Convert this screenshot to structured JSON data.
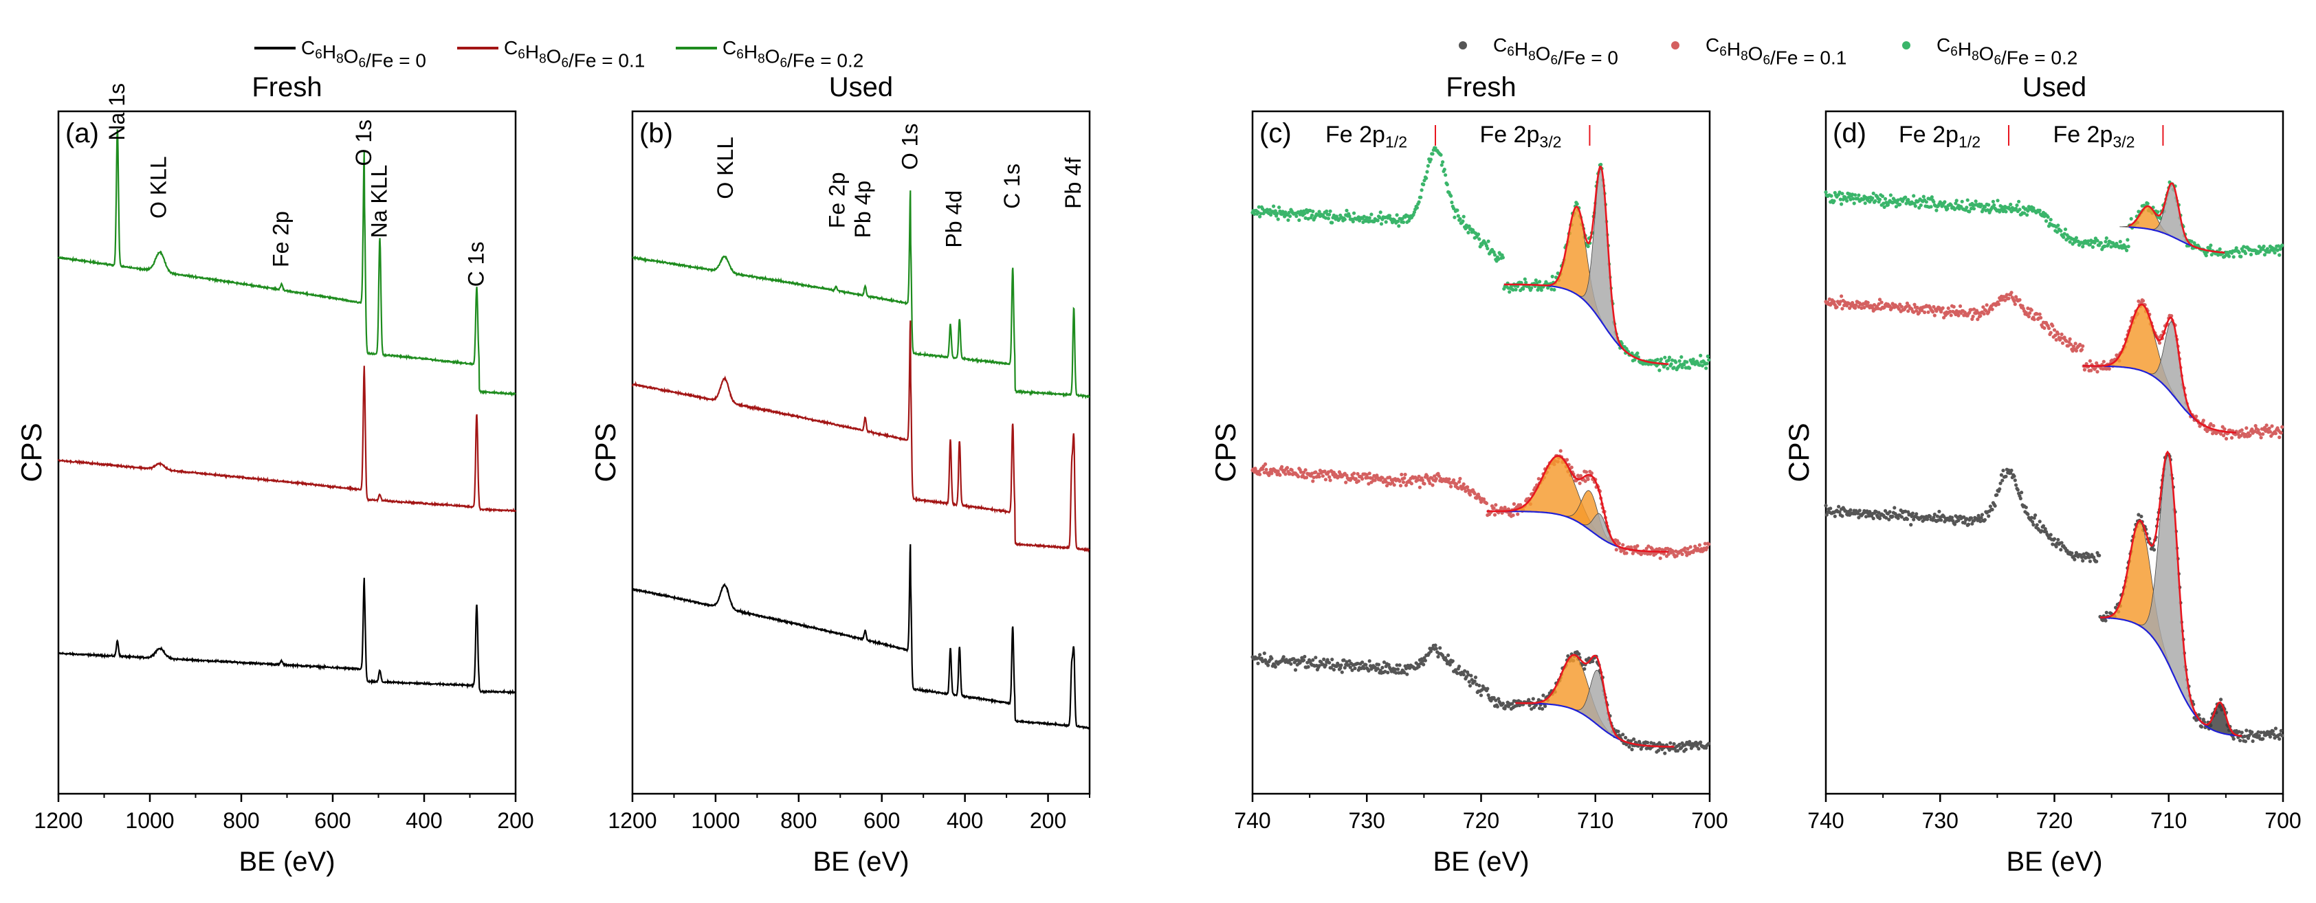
{
  "colors": {
    "black": "#000000",
    "red": "#a31515",
    "green": "#1e8c1e",
    "dot_black": "#555555",
    "dot_red": "#d46060",
    "dot_green": "#3ab56a",
    "envelope": "#e8161f",
    "background": "#1f1fd6",
    "fill_orange": "#f59a2c",
    "fill_gray": "#a8a8a8",
    "fill_dark": "#3c3c3c"
  },
  "legend_left": [
    {
      "name": "C6H8O6/Fe = 0",
      "base": "C",
      "parts": [
        {
          "t": "C"
        },
        {
          "s": "6"
        },
        {
          "t": "H"
        },
        {
          "s": "8"
        },
        {
          "t": "O"
        },
        {
          "s": "6"
        },
        {
          "t": "/Fe = 0"
        }
      ],
      "color_key": "black"
    },
    {
      "name": "C6H8O6/Fe = 0.1",
      "parts": [
        {
          "t": "C"
        },
        {
          "s": "6"
        },
        {
          "t": "H"
        },
        {
          "s": "8"
        },
        {
          "t": "O"
        },
        {
          "s": "6"
        },
        {
          "t": "/Fe = 0.1"
        }
      ],
      "color_key": "red"
    },
    {
      "name": "C6H8O6/Fe = 0.2",
      "parts": [
        {
          "t": "C"
        },
        {
          "s": "6"
        },
        {
          "t": "H"
        },
        {
          "s": "8"
        },
        {
          "t": "O"
        },
        {
          "s": "6"
        },
        {
          "t": "/Fe = 0.2"
        }
      ],
      "color_key": "green"
    }
  ],
  "legend_right": [
    {
      "name": "C6H8O6/Fe = 0",
      "parts": [
        {
          "t": "C"
        },
        {
          "s": "6"
        },
        {
          "t": "H"
        },
        {
          "s": "8"
        },
        {
          "t": "O"
        },
        {
          "s": "6"
        },
        {
          "t": "/Fe = 0"
        }
      ],
      "color_key": "dot_black"
    },
    {
      "name": "C6H8O6/Fe = 0.1",
      "parts": [
        {
          "t": "C"
        },
        {
          "s": "6"
        },
        {
          "t": "H"
        },
        {
          "s": "8"
        },
        {
          "t": "O"
        },
        {
          "s": "6"
        },
        {
          "t": "/Fe = 0.1"
        }
      ],
      "color_key": "dot_red"
    },
    {
      "name": "C6H8O6/Fe = 0.2",
      "parts": [
        {
          "t": "C"
        },
        {
          "s": "6"
        },
        {
          "t": "H"
        },
        {
          "s": "8"
        },
        {
          "t": "O"
        },
        {
          "s": "6"
        },
        {
          "t": "/Fe = 0.2"
        }
      ],
      "color_key": "dot_green"
    }
  ],
  "chart_data": [
    {
      "id": "a",
      "type": "line",
      "label": "(a)",
      "title": "Fresh",
      "xlabel": "BE (eV)",
      "ylabel": "CPS",
      "xlim": [
        1200,
        200
      ],
      "xticks": [
        1200,
        1000,
        800,
        600,
        400,
        200
      ],
      "series": [
        {
          "name": "C6H8O6/Fe = 0",
          "color_key": "black",
          "baseline": 0.0,
          "level_high": 0.22,
          "level_low": 0.08,
          "peaks": [
            [
              1071,
              0.08
            ],
            [
              978,
              0.05
            ],
            [
              712,
              0.02
            ],
            [
              531,
              0.47
            ],
            [
              497,
              0.06
            ],
            [
              285,
              0.42
            ]
          ]
        },
        {
          "name": "C6H8O6/Fe = 0.1",
          "color_key": "red",
          "baseline": 0.95,
          "level_high": 0.26,
          "level_low": 0.0,
          "peaks": [
            [
              978,
              0.03
            ],
            [
              531,
              0.64
            ],
            [
              497,
              0.03
            ],
            [
              285,
              0.48
            ]
          ]
        },
        {
          "name": "C6H8O6/Fe = 0.2",
          "color_key": "green",
          "baseline": 1.45,
          "level_high": 0.8,
          "level_low": 0.4,
          "peaks": [
            [
              1071,
              0.7
            ],
            [
              978,
              0.1
            ],
            [
              712,
              0.03
            ],
            [
              531,
              0.78
            ],
            [
              497,
              0.6
            ],
            [
              285,
              0.4
            ]
          ]
        }
      ],
      "annotations": [
        {
          "text": "Na 1s",
          "x": 1071,
          "y": 2.85
        },
        {
          "text": "O KLL",
          "x": 980,
          "y": 2.45
        },
        {
          "text": "Fe 2p",
          "x": 712,
          "y": 2.2
        },
        {
          "text": "O 1s",
          "x": 531,
          "y": 2.72
        },
        {
          "text": "Na KLL",
          "x": 497,
          "y": 2.35
        },
        {
          "text": "C 1s",
          "x": 285,
          "y": 2.1
        }
      ],
      "ylim": [
        -0.5,
        3.0
      ]
    },
    {
      "id": "b",
      "type": "line",
      "label": "(b)",
      "title": "Used",
      "xlabel": "BE (eV)",
      "ylabel": "CPS",
      "xlim": [
        1200,
        100
      ],
      "xticks": [
        1200,
        1000,
        800,
        600,
        400,
        200
      ],
      "series": [
        {
          "name": "C6H8O6/Fe = 0",
          "color_key": "black",
          "baseline": 0.0,
          "level_high": 0.75,
          "level_low": 0.15,
          "peaks": [
            [
              978,
              0.12
            ],
            [
              640,
              0.05
            ],
            [
              531,
              0.55
            ],
            [
              435,
              0.24
            ],
            [
              413,
              0.25
            ],
            [
              285,
              0.4
            ],
            [
              138,
              0.38
            ],
            [
              143,
              0.3
            ]
          ]
        },
        {
          "name": "C6H8O6/Fe = 0.1",
          "color_key": "red",
          "baseline": 0.85,
          "level_high": 0.95,
          "level_low": 0.4,
          "peaks": [
            [
              978,
              0.12
            ],
            [
              640,
              0.07
            ],
            [
              531,
              0.62
            ],
            [
              435,
              0.33
            ],
            [
              413,
              0.33
            ],
            [
              285,
              0.46
            ],
            [
              138,
              0.55
            ],
            [
              143,
              0.4
            ]
          ]
        },
        {
          "name": "C6H8O6/Fe = 0.2",
          "color_key": "green",
          "baseline": 1.65,
          "level_high": 0.8,
          "level_low": 0.35,
          "peaks": [
            [
              978,
              0.08
            ],
            [
              710,
              0.02
            ],
            [
              640,
              0.05
            ],
            [
              531,
              0.58
            ],
            [
              435,
              0.17
            ],
            [
              413,
              0.2
            ],
            [
              285,
              0.5
            ],
            [
              138,
              0.45
            ]
          ]
        }
      ],
      "annotations": [
        {
          "text": "O KLL",
          "x": 975,
          "y": 2.75
        },
        {
          "text": "Fe 2p",
          "x": 706,
          "y": 2.6
        },
        {
          "text": "Pb 4p",
          "x": 644,
          "y": 2.55
        },
        {
          "text": "O 1s",
          "x": 531,
          "y": 2.9
        },
        {
          "text": "Pb 4d",
          "x": 425,
          "y": 2.5
        },
        {
          "text": "C 1s",
          "x": 285,
          "y": 2.7
        },
        {
          "text": "Pb 4f",
          "x": 138,
          "y": 2.7
        }
      ],
      "ylim": [
        -0.3,
        3.2
      ]
    },
    {
      "id": "c",
      "type": "scatter",
      "label": "(c)",
      "title": "Fresh",
      "xlabel": "BE (eV)",
      "ylabel": "CPS",
      "xlim": [
        740,
        700
      ],
      "xticks": [
        740,
        730,
        720,
        710,
        700
      ],
      "markers": [
        {
          "label": "Fe 2p",
          "sub": "1/2",
          "x": 724
        },
        {
          "label": "Fe 2p",
          "sub": "3/2",
          "x": 710.5
        }
      ],
      "series": [
        {
          "name": "C6H8O6/Fe = 0",
          "dot_key": "dot_black",
          "offset": 0.0,
          "pre": 0.45,
          "post": 0.04,
          "sat": 0.12,
          "peak": 0.55,
          "peak_x": 710.3,
          "fit_from": 717,
          "fit_to": 703,
          "components": [
            {
              "x": 711.8,
              "h": 0.28,
              "w": 1.6,
              "fill": "fill_orange"
            },
            {
              "x": 709.8,
              "h": 0.28,
              "w": 0.9,
              "fill": "fill_gray"
            }
          ]
        },
        {
          "name": "C6H8O6/Fe = 0.1",
          "dot_key": "dot_red",
          "offset": 1.0,
          "pre": 0.42,
          "post": 0.04,
          "sat": 0.02,
          "peak": 0.38,
          "peak_x": 710.8,
          "fit_from": 719.5,
          "fit_to": 703.5,
          "components": [
            {
              "x": 713.2,
              "h": 0.3,
              "w": 2.0,
              "fill": "fill_orange"
            },
            {
              "x": 710.5,
              "h": 0.2,
              "w": 1.0,
              "fill": "fill_orange"
            },
            {
              "x": 709.6,
              "h": 0.12,
              "w": 0.8,
              "fill": "fill_gray"
            }
          ]
        },
        {
          "name": "C6H8O6/Fe = 0.2",
          "dot_key": "dot_green",
          "offset": 2.0,
          "pre": 0.75,
          "post": 0.0,
          "sat": 0.38,
          "peak": 1.05,
          "peak_x": 709.8,
          "fit_from": 718,
          "fit_to": 703.5,
          "components": [
            {
              "x": 711.6,
              "h": 0.45,
              "w": 1.1,
              "fill": "fill_orange"
            },
            {
              "x": 709.5,
              "h": 0.78,
              "w": 0.8,
              "fill": "fill_gray"
            }
          ]
        }
      ],
      "ylim": [
        -0.2,
        3.3
      ]
    },
    {
      "id": "d",
      "type": "scatter",
      "label": "(d)",
      "title": "Used",
      "xlabel": "BE (eV)",
      "ylabel": "CPS",
      "xlim": [
        740,
        700
      ],
      "xticks": [
        740,
        730,
        720,
        710,
        700
      ],
      "markers": [
        {
          "label": "Fe 2p",
          "sub": "1/2",
          "x": 724
        },
        {
          "label": "Fe 2p",
          "sub": "3/2",
          "x": 710.5
        }
      ],
      "series": [
        {
          "name": "C6H8O6/Fe = 0",
          "dot_key": "dot_black",
          "offset": 0.0,
          "pre": 1.15,
          "post": 0.0,
          "sat": 0.28,
          "peak": 1.25,
          "peak_x": 710,
          "fit_from": 716,
          "fit_to": 703.5,
          "components": [
            {
              "x": 712.5,
              "h": 0.55,
              "w": 1.3,
              "fill": "fill_orange"
            },
            {
              "x": 710,
              "h": 1.1,
              "w": 1.1,
              "fill": "fill_gray"
            },
            {
              "x": 705.5,
              "h": 0.16,
              "w": 0.7,
              "fill": "fill_dark"
            }
          ]
        },
        {
          "name": "C6H8O6/Fe = 0.1",
          "dot_key": "dot_red",
          "offset": 1.55,
          "pre": 0.7,
          "post": 0.05,
          "sat": 0.1,
          "peak": 0.6,
          "peak_x": 709.8,
          "fit_from": 717.5,
          "fit_to": 704,
          "components": [
            {
              "x": 712.3,
              "h": 0.35,
              "w": 1.5,
              "fill": "fill_orange"
            },
            {
              "x": 709.7,
              "h": 0.38,
              "w": 0.9,
              "fill": "fill_gray"
            }
          ]
        },
        {
          "name": "C6H8O6/Fe = 0.2",
          "dot_key": "dot_green",
          "offset": 2.55,
          "pre": 0.26,
          "post": 0.0,
          "sat": 0.0,
          "peak": 0.32,
          "peak_x": 709.6,
          "fit_from": 713.5,
          "fit_to": 705,
          "components": [
            {
              "x": 711.8,
              "h": 0.12,
              "w": 1.0,
              "fill": "fill_orange"
            },
            {
              "x": 709.7,
              "h": 0.28,
              "w": 0.8,
              "fill": "fill_gray"
            }
          ]
        }
      ],
      "ylim": [
        -0.3,
        3.3
      ]
    }
  ]
}
